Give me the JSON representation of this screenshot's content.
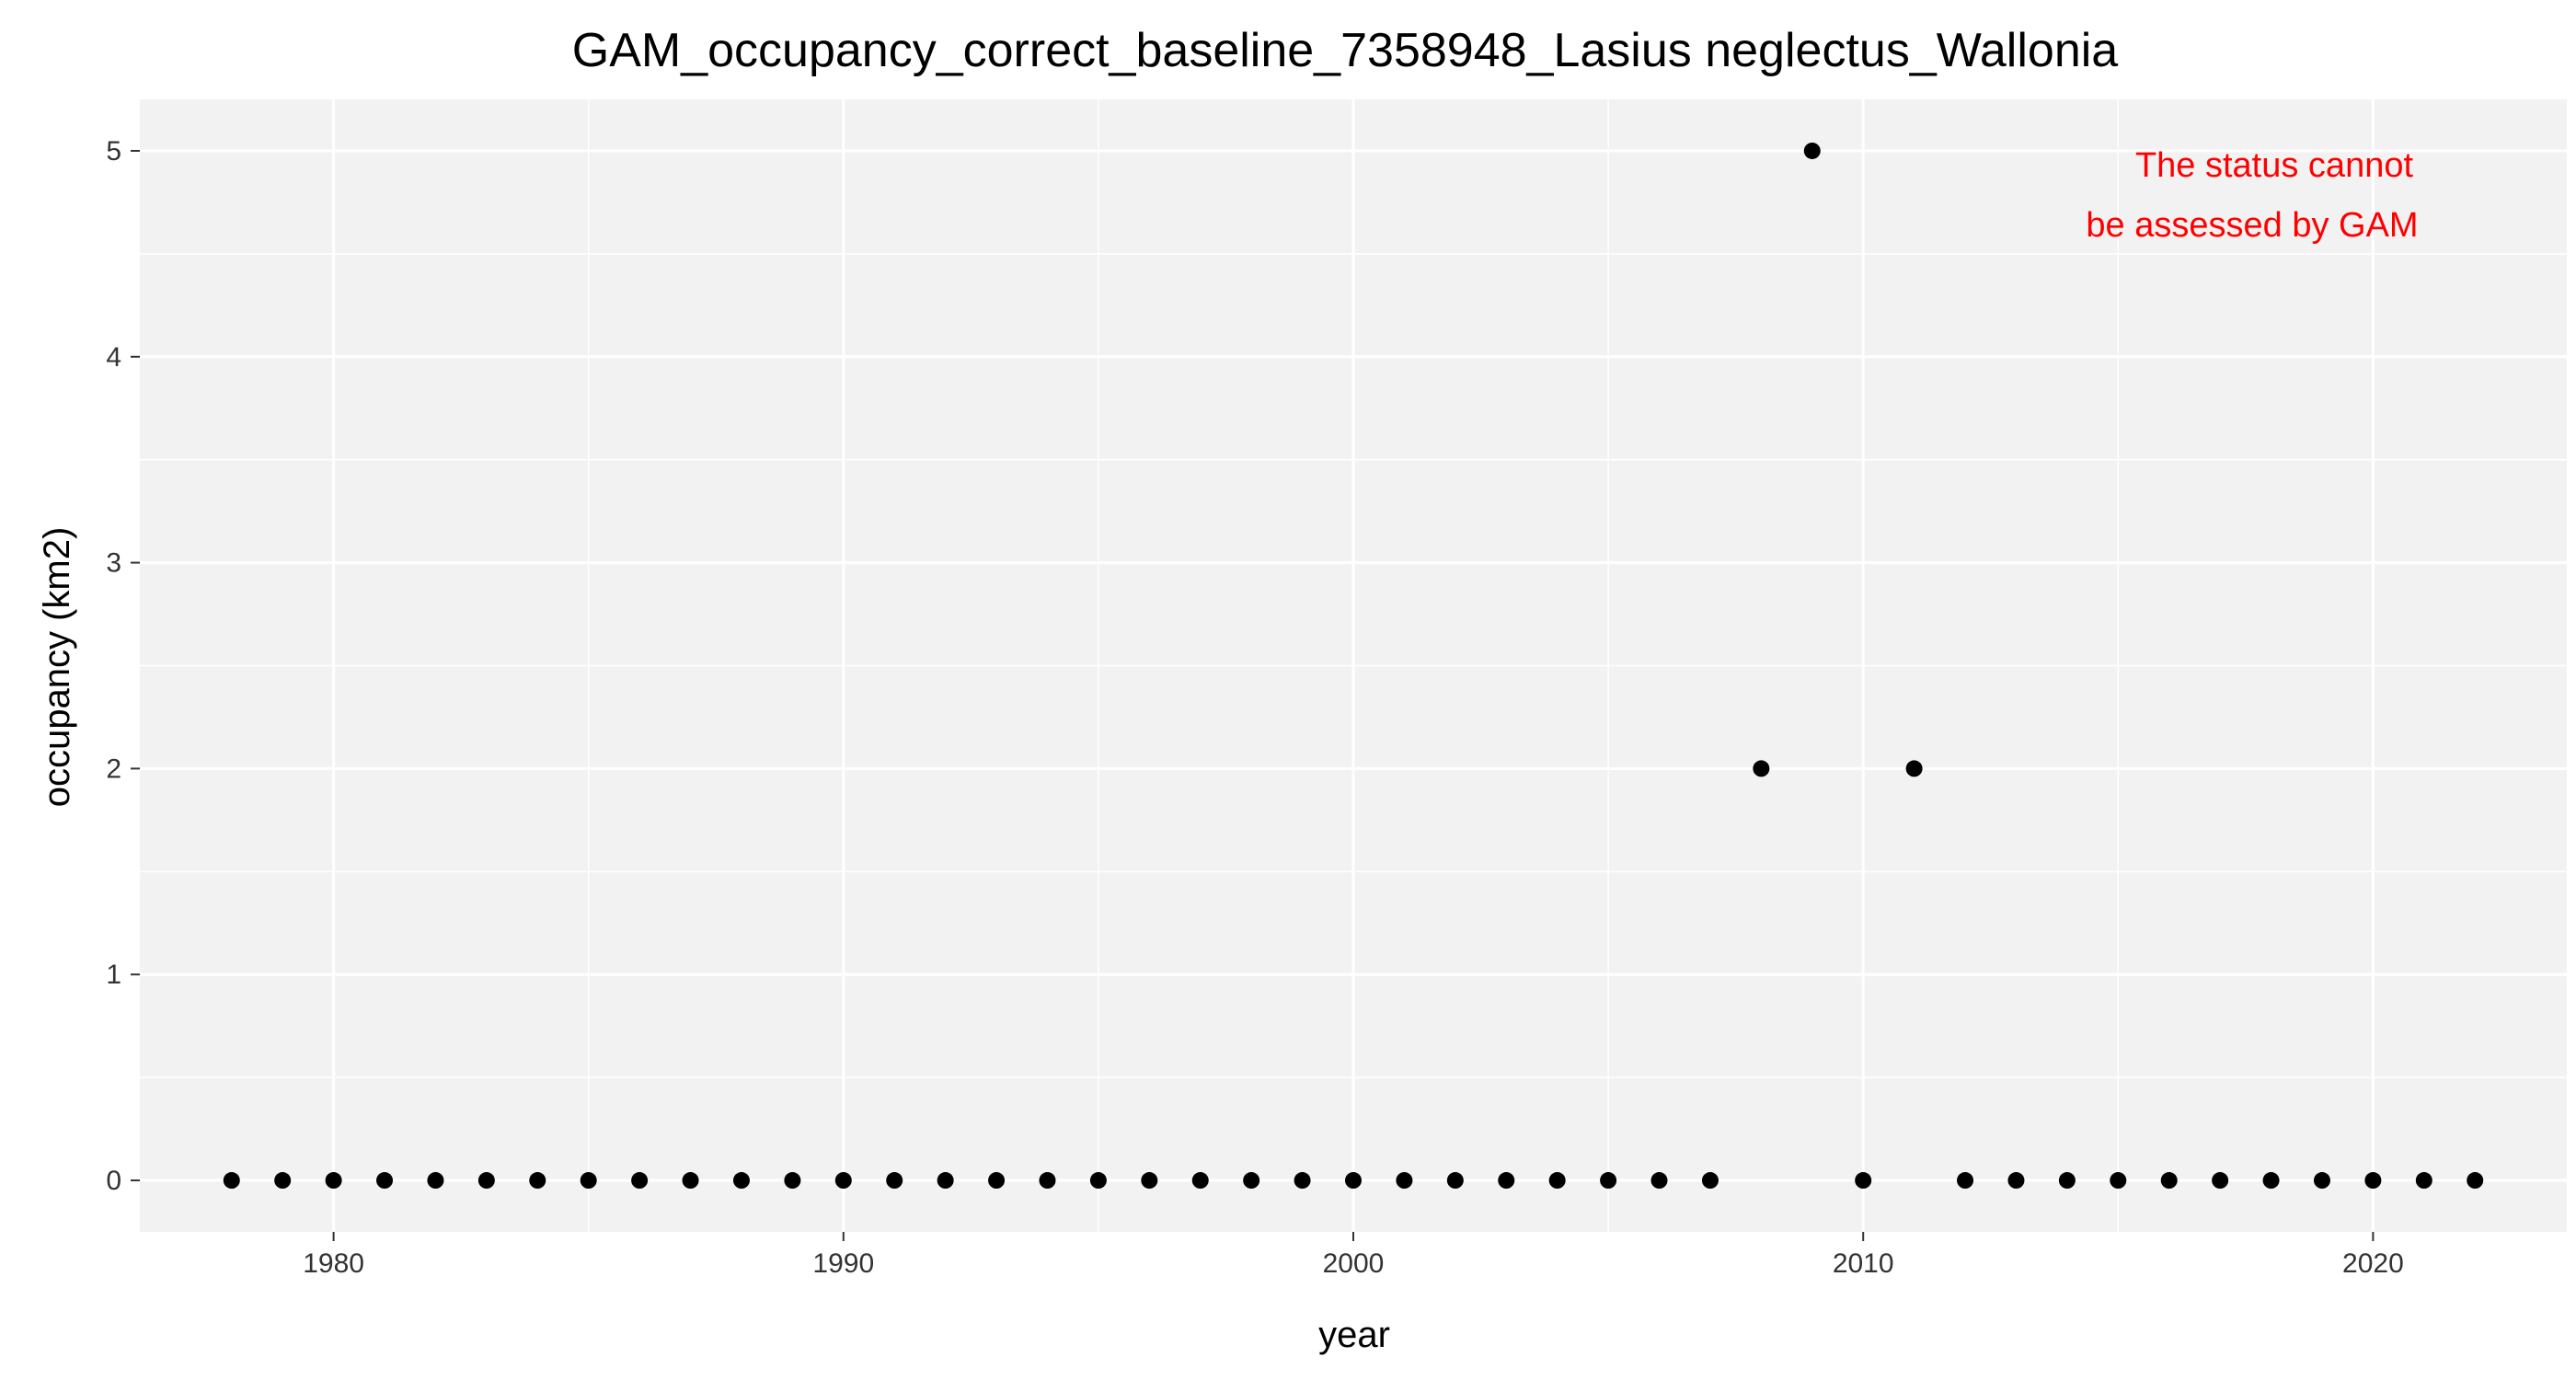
{
  "chart_data": {
    "type": "scatter",
    "title": "GAM_occupancy_correct_baseline_7358948_Lasius neglectus_Wallonia",
    "xlabel": "year",
    "ylabel": "occupancy (km2)",
    "xlim": [
      1976.2,
      2023.8
    ],
    "ylim": [
      -0.25,
      5.25
    ],
    "x_ticks": [
      1980,
      1990,
      2000,
      2010,
      2020
    ],
    "y_ticks": [
      0,
      1,
      2,
      3,
      4,
      5
    ],
    "grid": true,
    "panel_color": "#f2f2f2",
    "grid_color": "#ffffff",
    "point_color": "#000000",
    "annotation": {
      "lines": [
        "The status cannot",
        "be assessed by GAM"
      ],
      "color": "#ff0000",
      "position": "top-right"
    },
    "points": [
      {
        "x": 1978,
        "y": 0
      },
      {
        "x": 1979,
        "y": 0
      },
      {
        "x": 1980,
        "y": 0
      },
      {
        "x": 1981,
        "y": 0
      },
      {
        "x": 1982,
        "y": 0
      },
      {
        "x": 1983,
        "y": 0
      },
      {
        "x": 1984,
        "y": 0
      },
      {
        "x": 1985,
        "y": 0
      },
      {
        "x": 1986,
        "y": 0
      },
      {
        "x": 1987,
        "y": 0
      },
      {
        "x": 1988,
        "y": 0
      },
      {
        "x": 1989,
        "y": 0
      },
      {
        "x": 1990,
        "y": 0
      },
      {
        "x": 1991,
        "y": 0
      },
      {
        "x": 1992,
        "y": 0
      },
      {
        "x": 1993,
        "y": 0
      },
      {
        "x": 1994,
        "y": 0
      },
      {
        "x": 1995,
        "y": 0
      },
      {
        "x": 1996,
        "y": 0
      },
      {
        "x": 1997,
        "y": 0
      },
      {
        "x": 1998,
        "y": 0
      },
      {
        "x": 1999,
        "y": 0
      },
      {
        "x": 2000,
        "y": 0
      },
      {
        "x": 2001,
        "y": 0
      },
      {
        "x": 2002,
        "y": 0
      },
      {
        "x": 2003,
        "y": 0
      },
      {
        "x": 2004,
        "y": 0
      },
      {
        "x": 2005,
        "y": 0
      },
      {
        "x": 2006,
        "y": 0
      },
      {
        "x": 2007,
        "y": 0
      },
      {
        "x": 2008,
        "y": 2
      },
      {
        "x": 2009,
        "y": 5
      },
      {
        "x": 2010,
        "y": 0
      },
      {
        "x": 2011,
        "y": 2
      },
      {
        "x": 2012,
        "y": 0
      },
      {
        "x": 2013,
        "y": 0
      },
      {
        "x": 2014,
        "y": 0
      },
      {
        "x": 2015,
        "y": 0
      },
      {
        "x": 2016,
        "y": 0
      },
      {
        "x": 2017,
        "y": 0
      },
      {
        "x": 2018,
        "y": 0
      },
      {
        "x": 2019,
        "y": 0
      },
      {
        "x": 2020,
        "y": 0
      },
      {
        "x": 2021,
        "y": 0
      },
      {
        "x": 2022,
        "y": 0
      }
    ]
  }
}
